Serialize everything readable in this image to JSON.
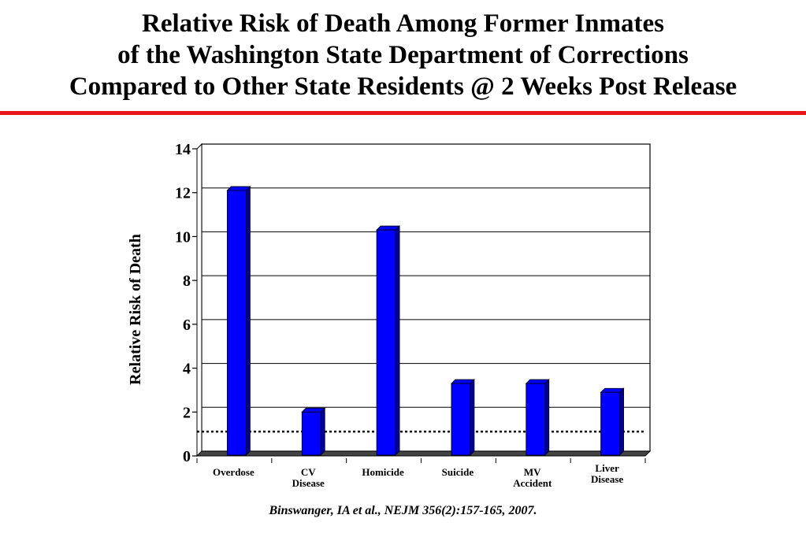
{
  "title_lines": [
    "Relative Risk of Death Among Former Inmates",
    "of the Washington State Department of Corrections",
    "Compared to Other State Residents @ 2 Weeks Post Release"
  ],
  "citation": "Binswanger, IA et al., NEJM 356(2):157-165, 2007.",
  "colors": {
    "bar": "#0000ff",
    "bar_side": "#00009a",
    "title_rule": "#e8141a"
  },
  "chart_data": {
    "type": "bar",
    "categories": [
      [
        "Overdose"
      ],
      [
        "CV",
        "Disease"
      ],
      [
        "Homicide"
      ],
      [
        "Suicide"
      ],
      [
        "MV",
        "Accident"
      ],
      [
        "Liver",
        "Disease"
      ]
    ],
    "values": [
      12.1,
      2.0,
      10.3,
      3.3,
      3.3,
      2.9
    ],
    "ylabel": "Relative Risk of Death",
    "ylim": [
      0,
      14
    ],
    "yticks": [
      0,
      2,
      4,
      6,
      8,
      10,
      12,
      14
    ],
    "reference_line": 1.0,
    "grid": true,
    "style": "3d"
  }
}
